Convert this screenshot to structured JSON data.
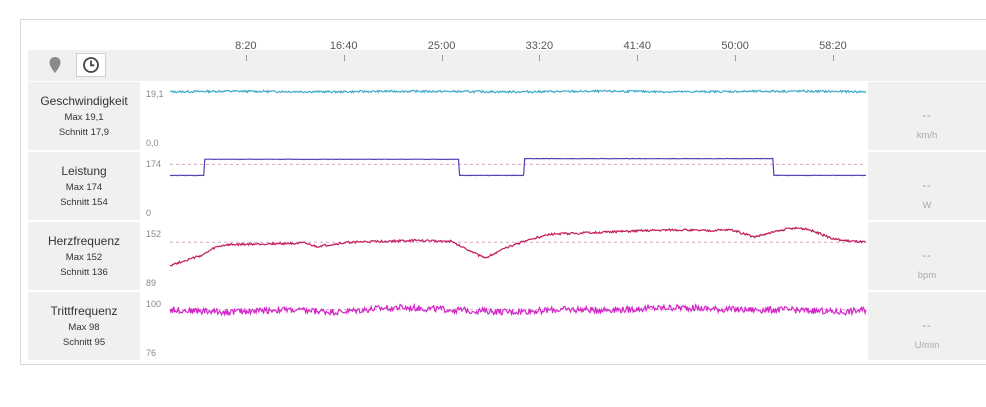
{
  "toolbar": {
    "map_icon": "map-marker-icon",
    "time_icon": "clock-icon"
  },
  "time_axis": {
    "ticks": [
      "8:20",
      "16:40",
      "25:00",
      "33:20",
      "41:40",
      "50:00",
      "58:20"
    ]
  },
  "chart_data": [
    {
      "type": "line",
      "name": "Geschwindigkeit",
      "max_label": "Max 19,1",
      "avg_label": "Schnitt 17,9",
      "ymax_label": "19,1",
      "ymin_label": "0,0",
      "ylim": [
        0,
        19.1
      ],
      "value_display": "--",
      "unit": "km/h",
      "color": "#3fa9c9",
      "x_minutes": [
        0,
        5,
        10,
        15,
        20,
        25,
        30,
        35,
        40,
        45,
        50,
        55,
        60,
        62
      ],
      "values": [
        17.8,
        18.0,
        17.9,
        17.8,
        18.0,
        17.9,
        17.8,
        17.9,
        18.0,
        17.8,
        17.9,
        18.0,
        17.9,
        17.8
      ]
    },
    {
      "type": "line",
      "name": "Leistung",
      "max_label": "Max 174",
      "avg_label": "Schnitt 154",
      "ymax_label": "174",
      "ymin_label": "0",
      "ylim": [
        0,
        174
      ],
      "reference": 154,
      "value_display": "--",
      "unit": "W",
      "color": "#5a3fb0",
      "x_minutes": [
        0,
        3,
        3.1,
        10,
        20,
        25.7,
        25.8,
        31.5,
        31.6,
        40,
        50,
        53.7,
        53.8,
        58,
        62
      ],
      "values": [
        120,
        120,
        170,
        170,
        170,
        170,
        120,
        120,
        172,
        172,
        172,
        172,
        120,
        120,
        120
      ]
    },
    {
      "type": "line",
      "name": "Herzfrequenz",
      "max_label": "Max 152",
      "avg_label": "Schnitt 136",
      "ymax_label": "152",
      "ymin_label": "89",
      "ylim": [
        89,
        152
      ],
      "reference": 136,
      "value_display": "--",
      "unit": "bpm",
      "color": "#c21b5b",
      "x_minutes": [
        0,
        2,
        3,
        4,
        5,
        8,
        12,
        13,
        16,
        22,
        25,
        27,
        28,
        30,
        32,
        34,
        38,
        42,
        45,
        48,
        50,
        52,
        55,
        56,
        57,
        58,
        59,
        60,
        62
      ],
      "values": [
        110,
        118,
        122,
        130,
        133,
        134,
        135,
        131,
        136,
        138,
        137,
        125,
        118,
        130,
        139,
        145,
        147,
        149,
        150,
        149,
        150,
        142,
        151,
        152,
        150,
        145,
        140,
        138,
        136
      ]
    },
    {
      "type": "line",
      "name": "Trittfrequenz",
      "max_label": "Max 98",
      "avg_label": "Schnitt 95",
      "ymax_label": "100",
      "ymin_label": "76",
      "ylim": [
        76,
        100
      ],
      "reference": 95,
      "value_display": "--",
      "unit": "U/min",
      "color": "#d326c8",
      "x_minutes": [
        0,
        5,
        10,
        15,
        20,
        25,
        30,
        35,
        40,
        45,
        50,
        55,
        60,
        62
      ],
      "values": [
        95,
        94,
        95,
        94,
        96,
        95,
        94,
        95,
        95,
        96,
        95,
        95,
        94,
        95
      ]
    }
  ]
}
